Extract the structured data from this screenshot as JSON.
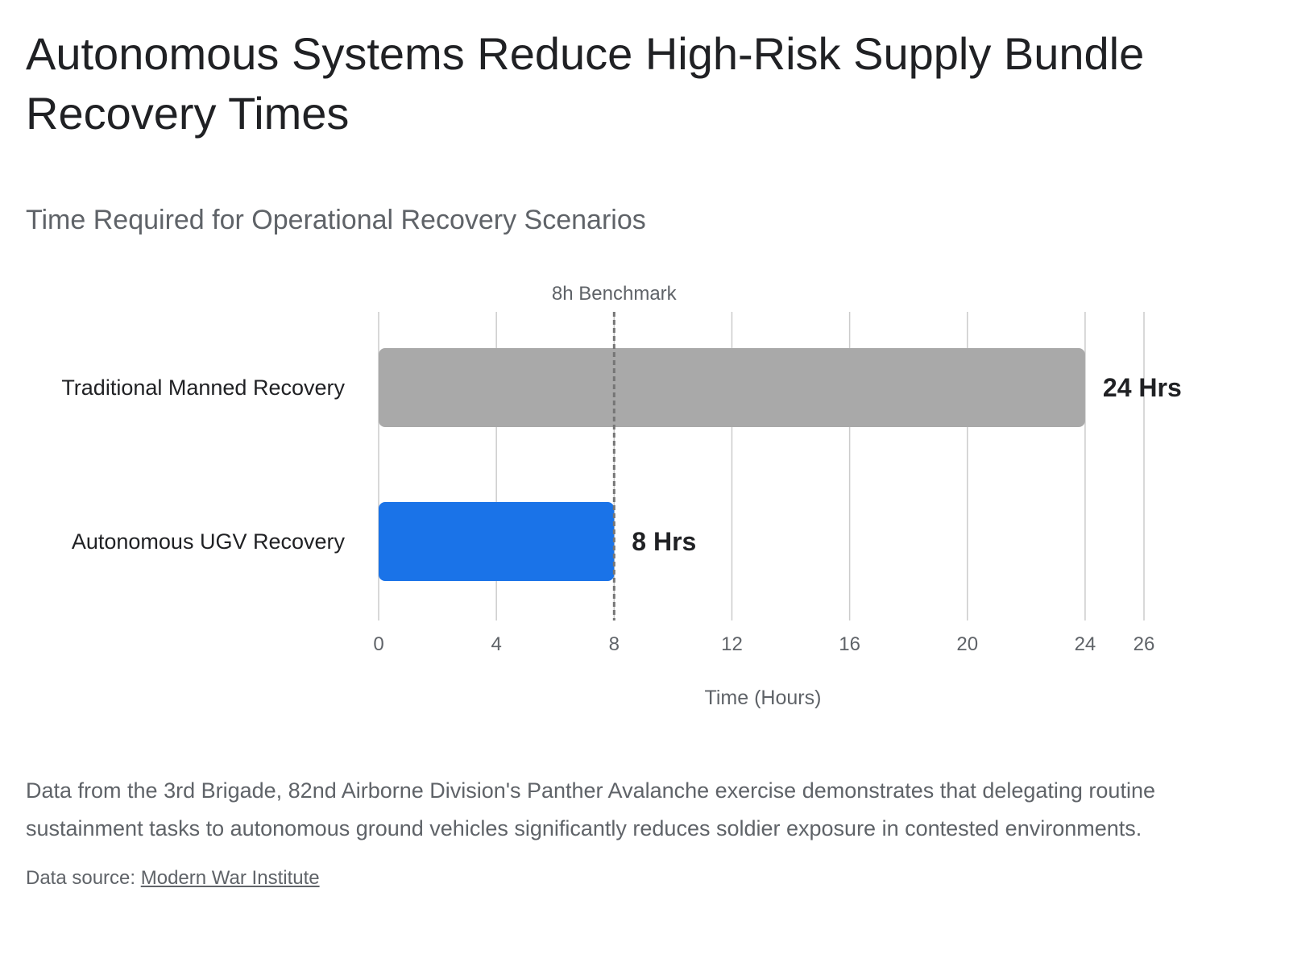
{
  "title": "Autonomous Systems Reduce High-Risk Supply Bundle Recovery Times",
  "chart_data": {
    "type": "bar",
    "orientation": "horizontal",
    "subtitle": "Time Required for Operational Recovery Scenarios",
    "categories": [
      "Traditional Manned Recovery",
      "Autonomous UGV Recovery"
    ],
    "values": [
      24,
      8
    ],
    "data_labels": [
      "24 Hrs",
      "8 Hrs"
    ],
    "bar_colors": [
      "#a9a9a9",
      "#1a73e8"
    ],
    "xlabel": "Time (Hours)",
    "ylabel": "",
    "xlim": [
      0,
      26
    ],
    "x_ticks": [
      0,
      4,
      8,
      12,
      16,
      20,
      24,
      26
    ],
    "grid": true,
    "annotations": [
      {
        "type": "reference-line",
        "value": 8,
        "label": "8h Benchmark",
        "style": "dashed",
        "color": "#757575"
      }
    ]
  },
  "description": "Data from the 3rd Brigade, 82nd Airborne Division's Panther Avalanche exercise demonstrates that delegating routine sustainment tasks to autonomous ground vehicles significantly reduces soldier exposure in contested environments.",
  "source": {
    "prefix": "Data source: ",
    "link_text": "Modern War Institute"
  },
  "colors": {
    "title": "#202124",
    "muted_text": "#5f6368",
    "gridline": "#cccccc"
  }
}
